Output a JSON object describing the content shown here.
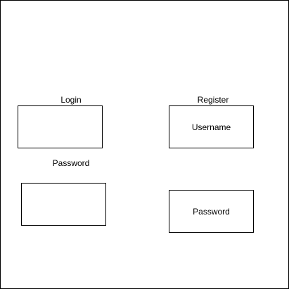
{
  "login": {
    "title": "Login",
    "password_label": "Password"
  },
  "register": {
    "title": "Register",
    "username_box_text": "Username",
    "password_box_text": "Password"
  }
}
